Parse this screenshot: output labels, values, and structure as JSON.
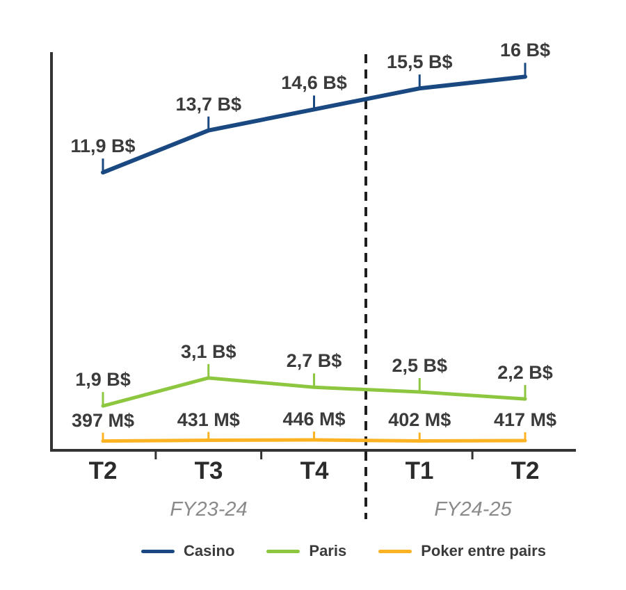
{
  "chart_data": {
    "type": "line",
    "categories": [
      "T2",
      "T3",
      "T4",
      "T1",
      "T2"
    ],
    "fiscal_year_groups": [
      {
        "label": "FY23-24",
        "categories": [
          "T2",
          "T3",
          "T4"
        ]
      },
      {
        "label": "FY24-25",
        "categories": [
          "T1",
          "T2"
        ]
      }
    ],
    "series": [
      {
        "name": "Casino",
        "color": "#1A4982",
        "unit": "B$",
        "values_billions": [
          11.9,
          13.7,
          14.6,
          15.5,
          16
        ],
        "point_labels": [
          "11,9 B$",
          "13,7 B$",
          "14,6 B$",
          "15,5 B$",
          "16 B$"
        ]
      },
      {
        "name": "Paris",
        "color": "#8DC63F",
        "unit": "B$",
        "values_billions": [
          1.9,
          3.1,
          2.7,
          2.5,
          2.2
        ],
        "point_labels": [
          "1,9 B$",
          "3,1 B$",
          "2,7 B$",
          "2,5 B$",
          "2,2 B$"
        ]
      },
      {
        "name": "Poker entre pairs",
        "color": "#FBB324",
        "unit": "M$",
        "values_millions": [
          397,
          431,
          446,
          402,
          417
        ],
        "values_billions": [
          0.397,
          0.431,
          0.446,
          0.402,
          0.417
        ],
        "point_labels": [
          "397 M$",
          "431 M$",
          "446 M$",
          "402 M$",
          "417 M$"
        ]
      }
    ],
    "separator": {
      "between": [
        "T4",
        "T1"
      ],
      "style": "dashed",
      "color": "#1F1F1F"
    },
    "axis_color": "#333333",
    "label_color": "#3B3B3B",
    "fiscal_label_color": "#8A8A8A",
    "ylim_billions": [
      0,
      17.1
    ],
    "grid": false,
    "legend_position": "bottom"
  }
}
